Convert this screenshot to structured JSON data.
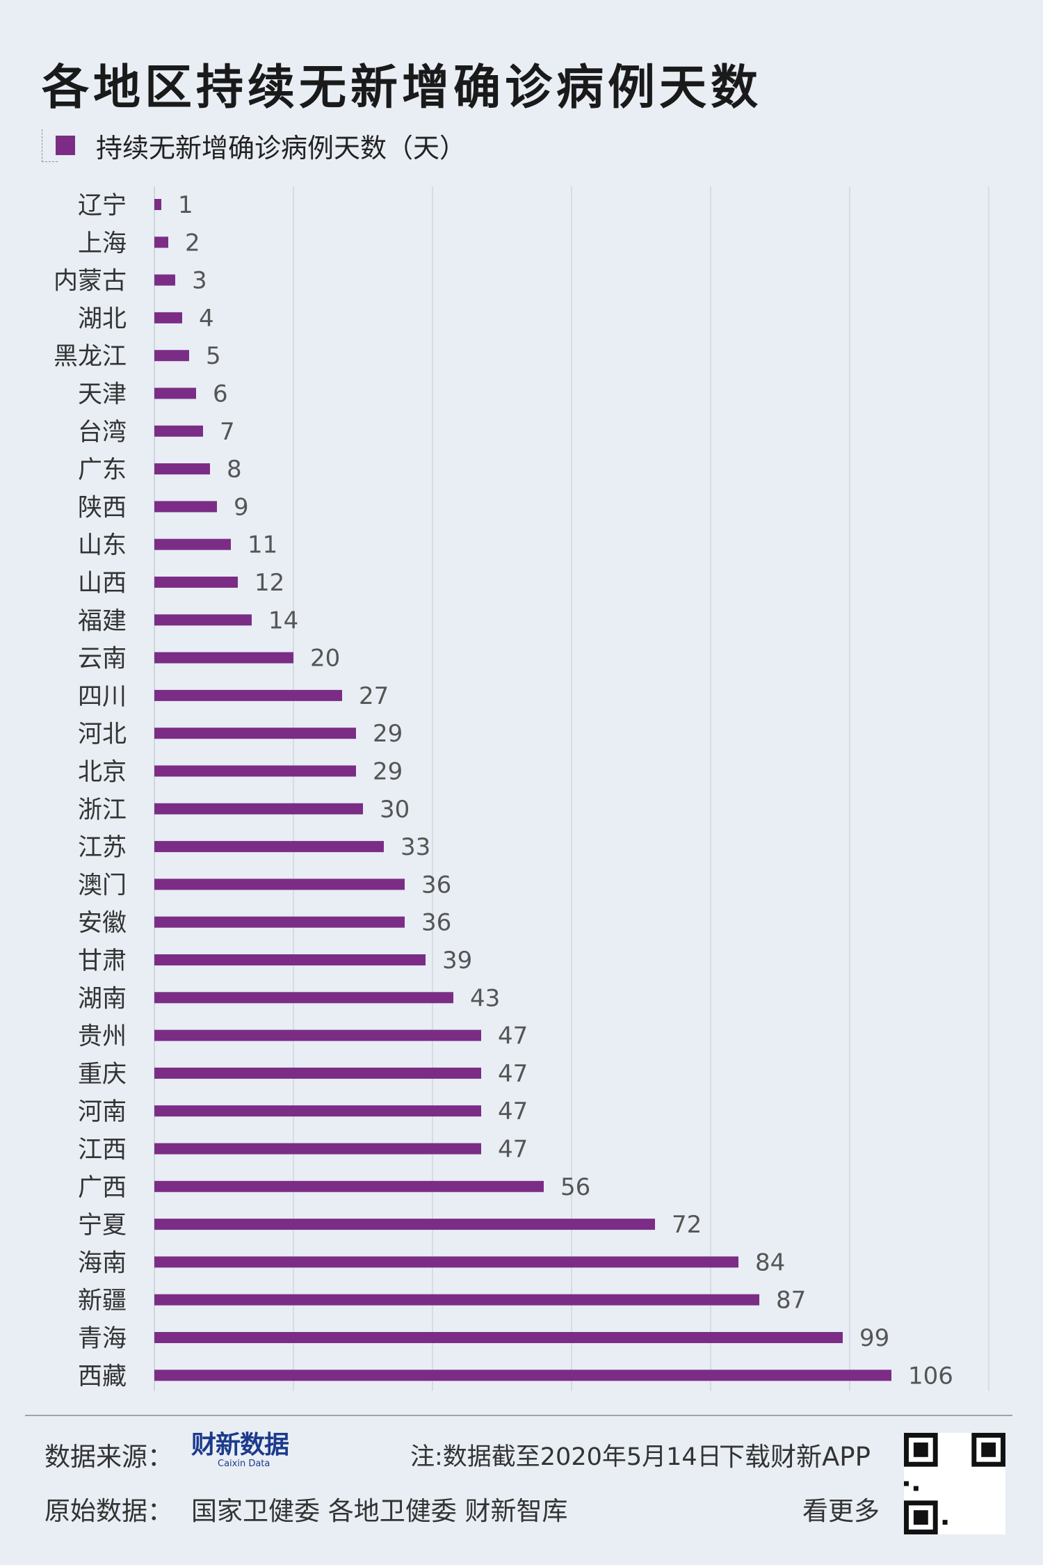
{
  "title": "各地区持续无新增确诊病例天数",
  "legend_label": "持续无新增确诊病例天数（天）",
  "colors": {
    "bar": "#7b2d86",
    "background": "#e8eef4",
    "grid": "#cfd6de"
  },
  "chart_data": {
    "type": "bar",
    "orientation": "horizontal",
    "categories": [
      "辽宁",
      "上海",
      "内蒙古",
      "湖北",
      "黑龙江",
      "天津",
      "台湾",
      "广东",
      "陕西",
      "山东",
      "山西",
      "福建",
      "云南",
      "四川",
      "河北",
      "北京",
      "浙江",
      "江苏",
      "澳门",
      "安徽",
      "甘肃",
      "湖南",
      "贵州",
      "重庆",
      "河南",
      "江西",
      "广西",
      "宁夏",
      "海南",
      "新疆",
      "青海",
      "西藏"
    ],
    "series": [
      {
        "name": "持续无新增确诊病例天数（天）",
        "values": [
          1,
          2,
          3,
          4,
          5,
          6,
          7,
          8,
          9,
          11,
          12,
          14,
          20,
          27,
          29,
          29,
          30,
          33,
          36,
          36,
          39,
          43,
          47,
          47,
          47,
          47,
          56,
          72,
          84,
          87,
          99,
          106
        ]
      }
    ],
    "xlim": [
      0,
      120
    ],
    "grid": true
  },
  "footer": {
    "source_label": "数据来源：",
    "logo_text": "财新数据",
    "logo_subtext": "Caixin Data",
    "note": "注:数据截至2020年5月14日",
    "download": "下载财新APP",
    "original_label": "原始数据：",
    "original_sources": "国家卫健委  各地卫健委  财新智库",
    "see_more": "看更多"
  }
}
